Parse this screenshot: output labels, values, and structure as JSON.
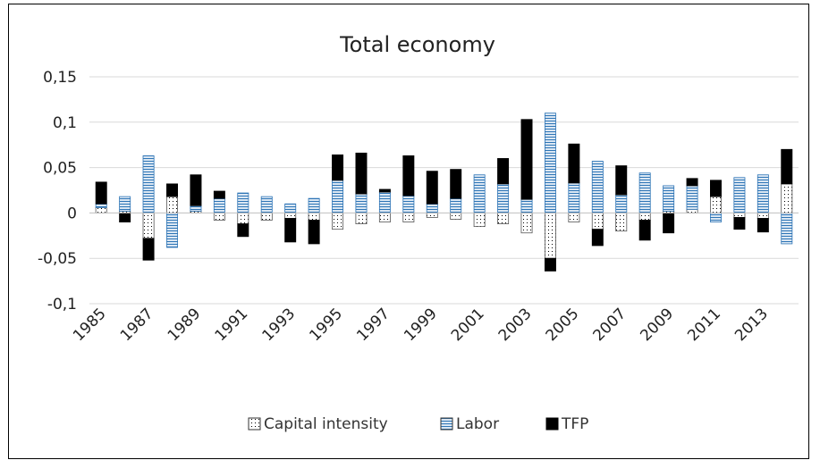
{
  "chart_data": {
    "type": "bar",
    "stacked": true,
    "title": "Total economy",
    "xlabel": "",
    "ylabel": "",
    "ylim": [
      -0.1,
      0.15
    ],
    "yticks": [
      {
        "value": 0.15,
        "label": "0,15"
      },
      {
        "value": 0.1,
        "label": "0,1"
      },
      {
        "value": 0.05,
        "label": "0,05"
      },
      {
        "value": 0,
        "label": "0"
      },
      {
        "value": -0.05,
        "label": "-0,05"
      },
      {
        "value": -0.1,
        "label": "-0,1"
      }
    ],
    "grid": true,
    "legend_position": "bottom",
    "categories": [
      "1985",
      "1986",
      "1987",
      "1988",
      "1989",
      "1990",
      "1991",
      "1992",
      "1993",
      "1994",
      "1995",
      "1996",
      "1997",
      "1998",
      "1999",
      "2000",
      "2001",
      "2002",
      "2003",
      "2004",
      "2005",
      "2006",
      "2007",
      "2008",
      "2009",
      "2010",
      "2011",
      "2012",
      "2013",
      "2014"
    ],
    "xtick_labels": [
      "1985",
      "1987",
      "1989",
      "1991",
      "1993",
      "1995",
      "1997",
      "1999",
      "2001",
      "2003",
      "2005",
      "2007",
      "2009",
      "2011",
      "2013"
    ],
    "series": [
      {
        "name": "Capital intensity",
        "pattern": "dotted",
        "values": [
          0.006,
          0.002,
          -0.028,
          0.018,
          0.002,
          -0.008,
          -0.012,
          -0.008,
          -0.006,
          -0.008,
          -0.018,
          -0.012,
          -0.01,
          -0.01,
          -0.005,
          -0.007,
          -0.015,
          -0.012,
          -0.022,
          -0.05,
          -0.01,
          -0.018,
          -0.02,
          -0.008,
          0.002,
          0.004,
          0.018,
          -0.005,
          -0.006,
          0.032
        ]
      },
      {
        "name": "Labor",
        "pattern": "horizontal-lines",
        "values": [
          0.004,
          0.016,
          0.063,
          -0.038,
          0.006,
          0.016,
          0.022,
          0.018,
          0.01,
          0.016,
          0.036,
          0.021,
          0.023,
          0.019,
          0.01,
          0.016,
          0.042,
          0.032,
          0.015,
          0.11,
          0.033,
          0.057,
          0.02,
          0.044,
          0.028,
          0.026,
          -0.01,
          0.039,
          0.042,
          -0.034
        ]
      },
      {
        "name": "TFP",
        "pattern": "solid",
        "values": [
          0.024,
          -0.01,
          -0.024,
          0.014,
          0.034,
          0.008,
          -0.014,
          0.0,
          -0.026,
          -0.026,
          0.028,
          0.045,
          0.003,
          0.044,
          0.036,
          0.032,
          0.0,
          0.028,
          0.088,
          -0.014,
          0.043,
          -0.018,
          0.032,
          -0.022,
          -0.022,
          0.008,
          0.018,
          -0.013,
          -0.015,
          0.038
        ]
      }
    ]
  }
}
